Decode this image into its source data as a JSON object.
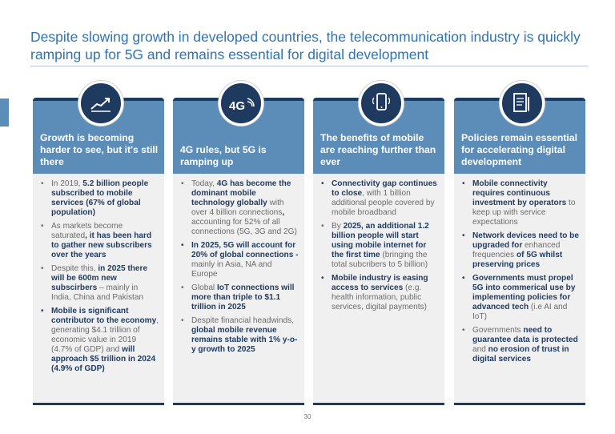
{
  "title": "Despite slowing growth in developed countries, the telecommunication industry is quickly ramping up for 5G and remains essential for digital development",
  "colors": {
    "accent": "#2e74b5",
    "header_blue": "#5b8db8",
    "navy": "#1f3a5f",
    "body_gray": "#f0f0f0"
  },
  "columns": [
    {
      "icon": "growth-chart-icon",
      "header": "Growth is becoming harder to see, but it's still there",
      "bullets": [
        [
          {
            "t": "In 2019, ",
            "b": false
          },
          {
            "t": "5.2 billion people subscribed to mobile services (67% of global population)",
            "b": true
          }
        ],
        [
          {
            "t": "As markets become saturated",
            "b": false
          },
          {
            "t": ", it has been hard to gather new subscribers over the years",
            "b": true
          }
        ],
        [
          {
            "t": "Despite this, ",
            "b": false
          },
          {
            "t": "in 2025 there will be 600m new subscirbers",
            "b": true
          },
          {
            "t": " – mainly in India, China and Pakistan",
            "b": false
          }
        ],
        [
          {
            "t": "Mobile is significant contributor to the economy",
            "b": true
          },
          {
            "t": ", generating $4.1 trillion of economic value in 2019 (4.7% of GDP) and ",
            "b": false
          },
          {
            "t": "will approach $5 trillion in 2024 (4.9% of GDP)",
            "b": true
          }
        ]
      ]
    },
    {
      "icon": "4g-signal-icon",
      "icon_text": "4G",
      "header": "4G rules, but 5G is ramping up",
      "bullets": [
        [
          {
            "t": "Today, ",
            "b": false
          },
          {
            "t": "4G has become the dominant mobile technology globally",
            "b": true
          },
          {
            "t": " with over 4 billion connections",
            "b": false
          },
          {
            "t": ",",
            "b": true
          },
          {
            "t": " accounting for 52% of all connections (5G, 3G and 2G)",
            "b": false
          }
        ],
        [
          {
            "t": "In 2025, 5G will account for 20% of global connections -",
            "b": true
          },
          {
            "t": " mainly in Asia, NA and Europe",
            "b": false
          }
        ],
        [
          {
            "t": "Global ",
            "b": false
          },
          {
            "t": "IoT connections will more than triple to $1.1 trillion in 2025",
            "b": true
          }
        ],
        [
          {
            "t": "Despite financial headwinds, ",
            "b": false
          },
          {
            "t": "global mobile revenue remains stable with 1% y-o-y growth to 2025",
            "b": true
          }
        ]
      ]
    },
    {
      "icon": "smartphone-icon",
      "header": "The benefits of mobile are reaching further than ever",
      "bullets": [
        [
          {
            "t": "Connectivity gap continues to close",
            "b": true
          },
          {
            "t": ", with 1 billion additional people covered by mobile broadband",
            "b": false
          }
        ],
        [
          {
            "t": "By ",
            "b": false
          },
          {
            "t": "2025, an additional 1.2 billion people will start using mobile internet for the first time",
            "b": true
          },
          {
            "t": " (bringing the total subcribers to 5 billion)",
            "b": false
          }
        ],
        [
          {
            "t": "Mobile industry is easing access to services",
            "b": true
          },
          {
            "t": " (e.g. health information, public services, digital payments)",
            "b": false
          }
        ]
      ]
    },
    {
      "icon": "policy-document-icon",
      "header": "Policies remain essential for accelerating digital development",
      "bullets": [
        [
          {
            "t": "Mobile connectivity requires continuous investment by operators",
            "b": true
          },
          {
            "t": " to keep up with service expectations",
            "b": false
          }
        ],
        [
          {
            "t": "Network devices need to be upgraded for",
            "b": true
          },
          {
            "t": " enhanced frequencies ",
            "b": false
          },
          {
            "t": "of 5G whilst preserving prices",
            "b": true
          }
        ],
        [
          {
            "t": "Governments must propel 5G into commerical use by implementing policies for advanced tech",
            "b": true
          },
          {
            "t": " (i.e AI and IoT)",
            "b": false
          }
        ],
        [
          {
            "t": "Governments ",
            "b": false
          },
          {
            "t": "need to guarantee data is protected",
            "b": true
          },
          {
            "t": " and ",
            "b": false
          },
          {
            "t": "no erosion of trust in digital services",
            "b": true
          }
        ]
      ]
    }
  ],
  "page_number": "30"
}
